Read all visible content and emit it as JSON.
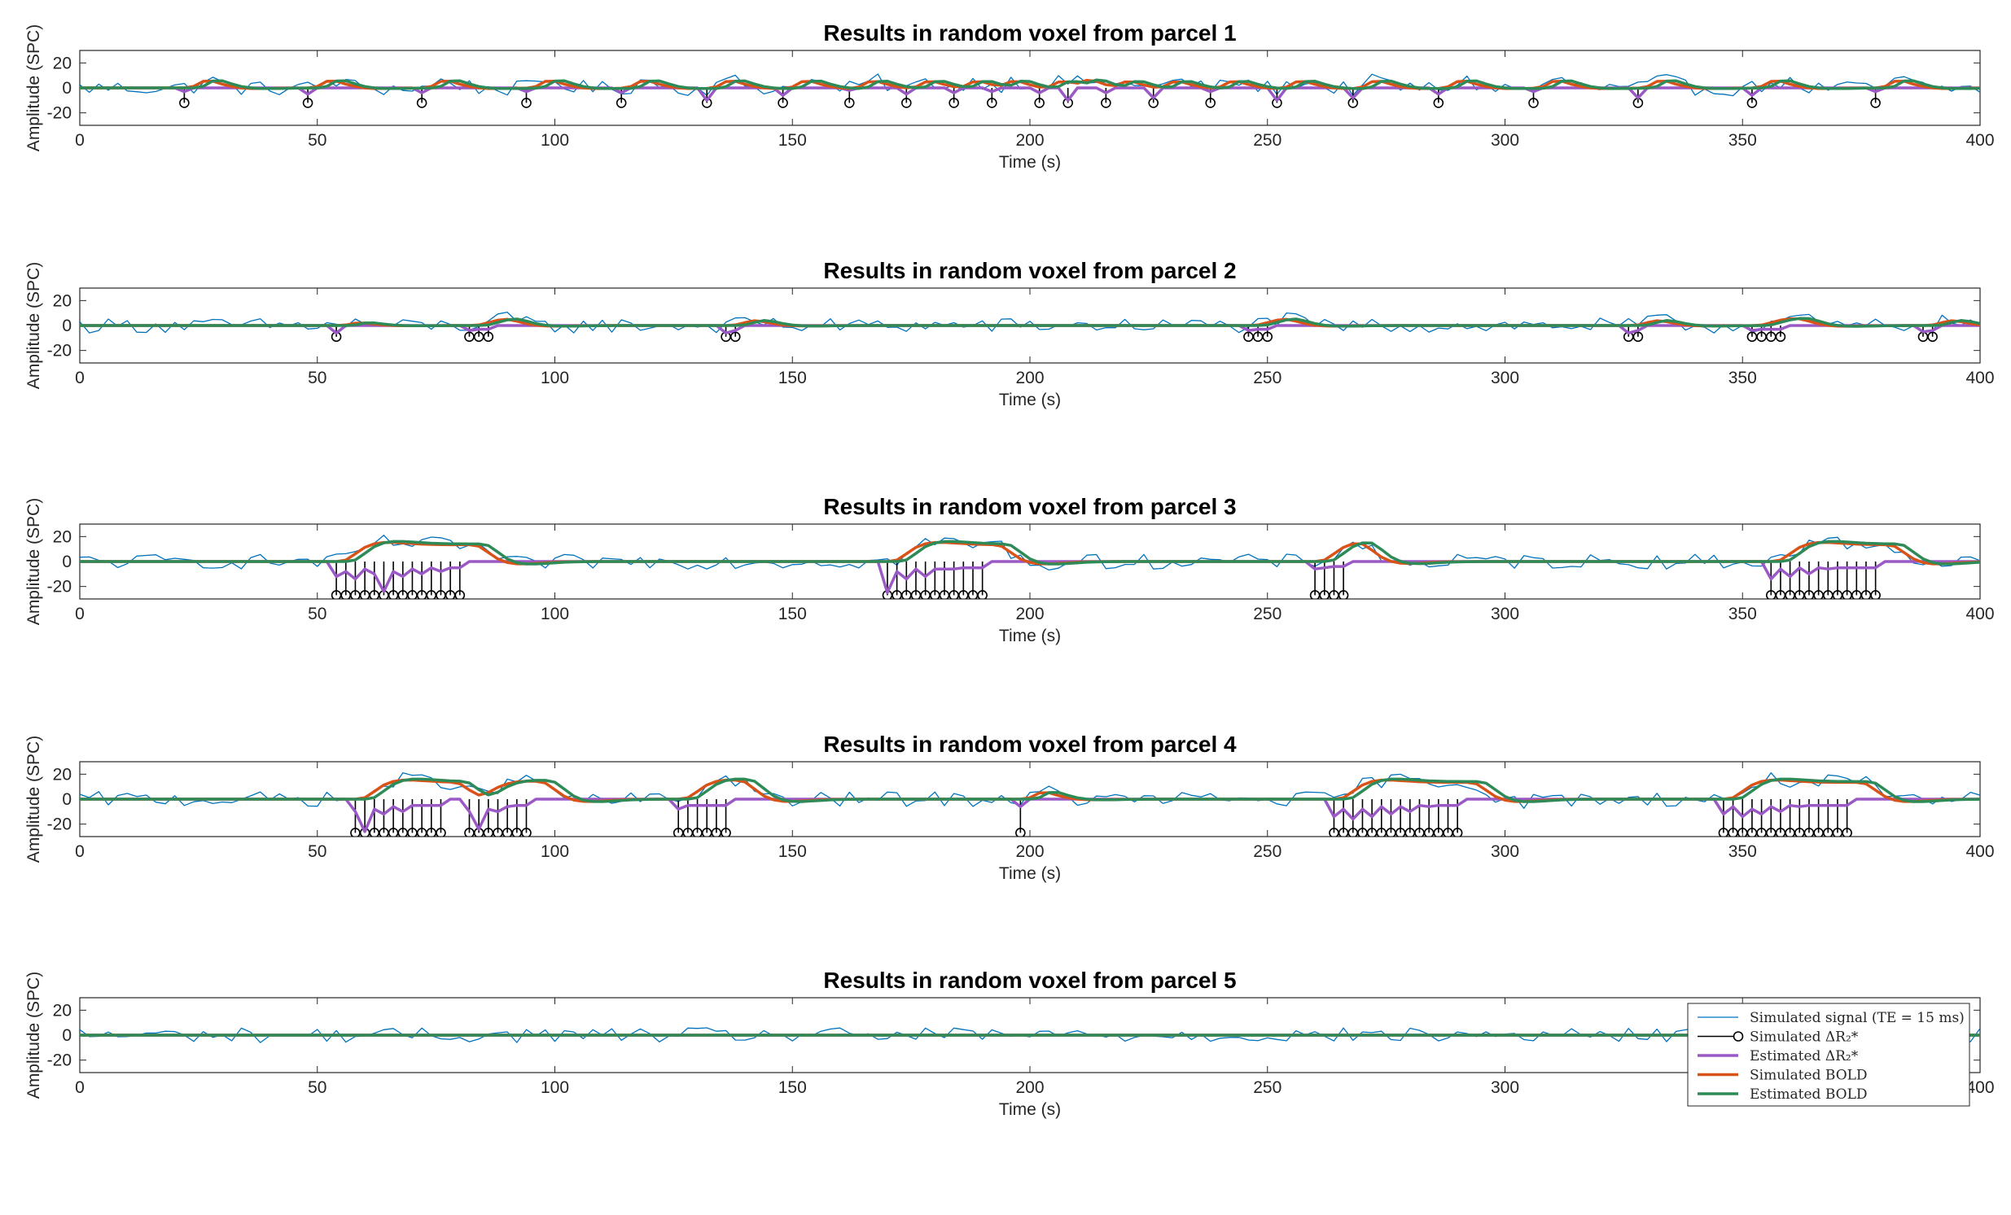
{
  "figure": {
    "xlabel": "Time (s)",
    "ylabel": "Amplitude (SPC)"
  },
  "legend": {
    "position": "top-right of parcel 5 panel",
    "entries": [
      {
        "key": "signal",
        "label": "Simulated signal (TE = 15 ms)"
      },
      {
        "key": "sim_dr2",
        "label": "Simulated ΔR₂*"
      },
      {
        "key": "est_dr2",
        "label": "Estimated ΔR₂*"
      },
      {
        "key": "sim_bold",
        "label": "Simulated BOLD"
      },
      {
        "key": "est_bold",
        "label": "Estimated BOLD"
      }
    ]
  },
  "colors": {
    "signal": "#0072BD",
    "sim_dr2": "#000000",
    "est_dr2": "#9B59C6",
    "sim_bold": "#D95319",
    "est_bold": "#2E8B57",
    "axis": "#262626"
  },
  "chart_data": [
    {
      "type": "line",
      "title": "Results in random voxel from parcel 1",
      "xlabel": "Time (s)",
      "ylabel": "Amplitude (SPC)",
      "xlim": [
        0,
        400
      ],
      "ylim": [
        -30,
        30
      ],
      "xticks": [
        0,
        50,
        100,
        150,
        200,
        250,
        300,
        350,
        400
      ],
      "yticks": [
        -20,
        0,
        20
      ],
      "x_step": 2,
      "noise_amp": 6,
      "events": [
        22,
        48,
        72,
        94,
        114,
        132,
        148,
        162,
        174,
        184,
        192,
        202,
        208,
        216,
        226,
        238,
        252,
        268,
        286,
        306,
        328,
        352,
        378
      ],
      "sim_dr2_amp": -12,
      "est_dr2_amp": [
        -3,
        -5,
        -4,
        -3,
        -4,
        -10,
        -6,
        -2,
        -5,
        -4,
        -3,
        -4,
        -10,
        -4,
        -8,
        -3,
        -10,
        -8,
        -5,
        -3,
        -8,
        -6,
        -3
      ],
      "bold_amp": 6
    },
    {
      "type": "line",
      "title": "Results in random voxel from parcel 2",
      "xlabel": "Time (s)",
      "ylabel": "Amplitude (SPC)",
      "xlim": [
        0,
        400
      ],
      "ylim": [
        -30,
        30
      ],
      "xticks": [
        0,
        50,
        100,
        150,
        200,
        250,
        300,
        350,
        400
      ],
      "yticks": [
        -20,
        0,
        20
      ],
      "x_step": 2,
      "noise_amp": 6,
      "events": [
        54,
        82,
        84,
        86,
        136,
        138,
        246,
        248,
        250,
        326,
        328,
        352,
        354,
        356,
        358,
        388,
        390
      ],
      "sim_dr2_amp": -9,
      "est_dr2_amp": [
        -6,
        -4,
        -3,
        -3,
        -6,
        -4,
        -4,
        -3,
        -3,
        -6,
        -4,
        -4,
        -3,
        -3,
        -3,
        -5,
        -4
      ],
      "bold_amp": 5
    },
    {
      "type": "line",
      "title": "Results in random voxel from parcel 3",
      "xlabel": "Time (s)",
      "ylabel": "Amplitude (SPC)",
      "xlim": [
        0,
        400
      ],
      "ylim": [
        -30,
        30
      ],
      "xticks": [
        0,
        50,
        100,
        150,
        200,
        250,
        300,
        350,
        400
      ],
      "yticks": [
        -20,
        0,
        20
      ],
      "x_step": 2,
      "noise_amp": 6,
      "events": [
        54,
        56,
        58,
        60,
        62,
        64,
        66,
        68,
        70,
        72,
        74,
        76,
        78,
        80,
        170,
        172,
        174,
        176,
        178,
        180,
        182,
        184,
        186,
        188,
        190,
        260,
        262,
        264,
        266,
        356,
        358,
        360,
        362,
        364,
        366,
        368,
        370,
        372,
        374,
        376,
        378
      ],
      "sim_dr2_amp": -27,
      "est_dr2_amp": [
        -12,
        -8,
        -14,
        -6,
        -10,
        -24,
        -8,
        -12,
        -6,
        -10,
        -5,
        -8,
        -5,
        -5,
        -25,
        -8,
        -14,
        -6,
        -12,
        -6,
        -6,
        -6,
        -5,
        -5,
        -5,
        -6,
        -5,
        -4,
        -4,
        -14,
        -6,
        -12,
        -5,
        -10,
        -5,
        -6,
        -5,
        -5,
        -5,
        -5,
        -5
      ],
      "bold_amp": 16
    },
    {
      "type": "line",
      "title": "Results in random voxel from parcel 4",
      "xlabel": "Time (s)",
      "ylabel": "Amplitude (SPC)",
      "xlim": [
        0,
        400
      ],
      "ylim": [
        -30,
        30
      ],
      "xticks": [
        0,
        50,
        100,
        150,
        200,
        250,
        300,
        350,
        400
      ],
      "yticks": [
        -20,
        0,
        20
      ],
      "x_step": 2,
      "noise_amp": 6,
      "events": [
        58,
        60,
        62,
        64,
        66,
        68,
        70,
        72,
        74,
        76,
        82,
        84,
        86,
        88,
        90,
        92,
        94,
        126,
        128,
        130,
        132,
        134,
        136,
        198,
        264,
        266,
        268,
        270,
        272,
        274,
        276,
        278,
        280,
        282,
        284,
        286,
        288,
        290,
        346,
        348,
        350,
        352,
        354,
        356,
        358,
        360,
        362,
        364,
        366,
        368,
        370,
        372
      ],
      "sim_dr2_amp": -27,
      "est_dr2_amp": [
        -10,
        -26,
        -8,
        -12,
        -6,
        -10,
        -5,
        -5,
        -5,
        -5,
        -10,
        -24,
        -8,
        -10,
        -6,
        -5,
        -5,
        -8,
        -5,
        -5,
        -5,
        -5,
        -5,
        -6,
        -14,
        -8,
        -16,
        -8,
        -14,
        -6,
        -12,
        -6,
        -10,
        -5,
        -6,
        -5,
        -5,
        -5,
        -12,
        -6,
        -14,
        -8,
        -12,
        -6,
        -10,
        -5,
        -6,
        -5,
        -5,
        -5,
        -5,
        -5
      ],
      "bold_amp": 16
    },
    {
      "type": "line",
      "title": "Results in random voxel from parcel 5",
      "xlabel": "Time (s)",
      "ylabel": "Amplitude (SPC)",
      "xlim": [
        0,
        400
      ],
      "ylim": [
        -30,
        30
      ],
      "xticks": [
        0,
        50,
        100,
        150,
        200,
        250,
        300,
        350,
        400
      ],
      "yticks": [
        -20,
        0,
        20
      ],
      "x_step": 2,
      "noise_amp": 6,
      "events": [],
      "sim_dr2_amp": 0,
      "est_dr2_amp": [],
      "bold_amp": 0
    }
  ]
}
